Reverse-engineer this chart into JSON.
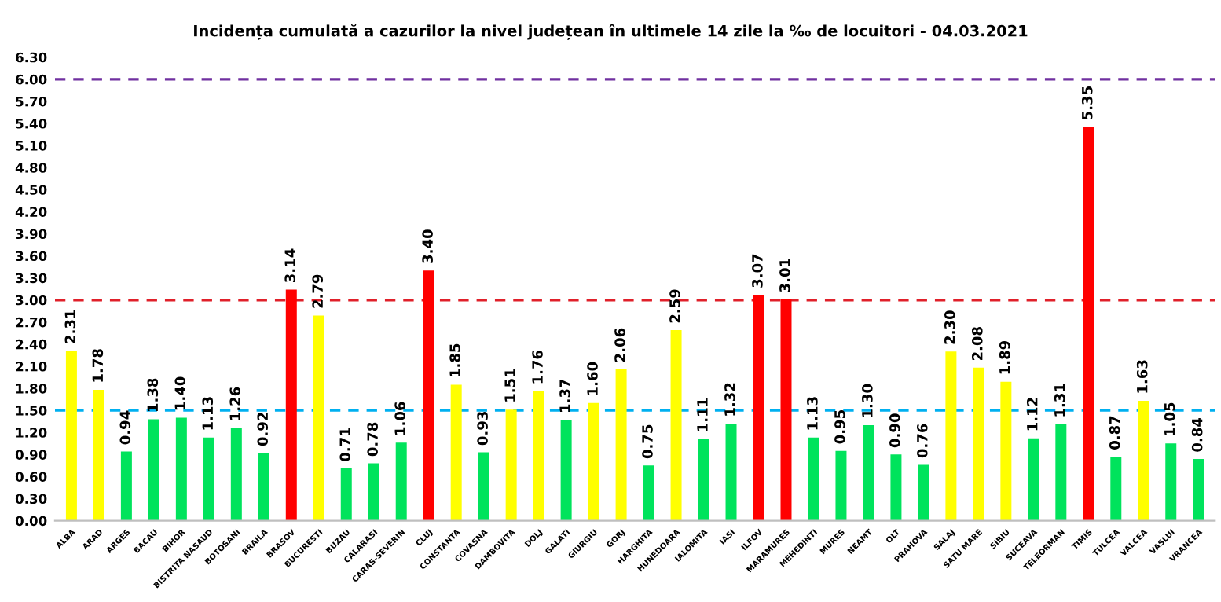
{
  "chart_data": {
    "type": "bar",
    "title": "Incidența cumulată a cazurilor la nivel județean în ultimele 14 zile la ‰ de locuitori - 04.03.2021",
    "categories": [
      "ALBA",
      "ARAD",
      "ARGES",
      "BACAU",
      "BIHOR",
      "BISTRITA NASAUD",
      "BOTOSANI",
      "BRAILA",
      "BRASOV",
      "BUCURESTI",
      "BUZAU",
      "CALARASI",
      "CARAS-SEVERIN",
      "CLUJ",
      "CONSTANTA",
      "COVASNA",
      "DAMBOVITA",
      "DOLJ",
      "GALATI",
      "GIURGIU",
      "GORJ",
      "HARGHITA",
      "HUNEDOARA",
      "IALOMITA",
      "IASI",
      "ILFOV",
      "MARAMURES",
      "MEHEDINTI",
      "MURES",
      "NEAMT",
      "OLT",
      "PRAHOVA",
      "SALAJ",
      "SATU MARE",
      "SIBIU",
      "SUCEAVA",
      "TELEORMAN",
      "TIMIS",
      "TULCEA",
      "VALCEA",
      "VASLUI",
      "VRANCEA"
    ],
    "values": [
      2.31,
      1.78,
      0.94,
      1.38,
      1.4,
      1.13,
      1.26,
      0.92,
      3.14,
      2.79,
      0.71,
      0.78,
      1.06,
      3.4,
      1.85,
      0.93,
      1.51,
      1.76,
      1.37,
      1.6,
      2.06,
      0.75,
      2.59,
      1.11,
      1.32,
      3.07,
      3.01,
      1.13,
      0.95,
      1.3,
      0.9,
      0.76,
      2.3,
      2.08,
      1.89,
      1.12,
      1.31,
      5.35,
      0.87,
      1.63,
      1.05,
      0.84
    ],
    "value_labels": [
      "2.31",
      "1.78",
      "0.94",
      "1.38",
      "1.40",
      "1.13",
      "1.26",
      "0.92",
      "3.14",
      "2.79",
      "0.71",
      "0.78",
      "1.06",
      "3.40",
      "1.85",
      "0.93",
      "1.51",
      "1.76",
      "1.37",
      "1.60",
      "2.06",
      "0.75",
      "2.59",
      "1.11",
      "1.32",
      "3.07",
      "3.01",
      "1.13",
      "0.95",
      "1.30",
      "0.90",
      "0.76",
      "2.30",
      "2.08",
      "1.89",
      "1.12",
      "1.31",
      "5.35",
      "0.87",
      "1.63",
      "1.05",
      "0.84"
    ],
    "colors": [
      "#ffff00",
      "#ffff00",
      "#00e35c",
      "#00e35c",
      "#00e35c",
      "#00e35c",
      "#00e35c",
      "#00e35c",
      "#ff0000",
      "#ffff00",
      "#00e35c",
      "#00e35c",
      "#00e35c",
      "#ff0000",
      "#ffff00",
      "#00e35c",
      "#ffff00",
      "#ffff00",
      "#00e35c",
      "#ffff00",
      "#ffff00",
      "#00e35c",
      "#ffff00",
      "#00e35c",
      "#00e35c",
      "#ff0000",
      "#ff0000",
      "#00e35c",
      "#00e35c",
      "#00e35c",
      "#00e35c",
      "#00e35c",
      "#ffff00",
      "#ffff00",
      "#ffff00",
      "#00e35c",
      "#00e35c",
      "#ff0000",
      "#00e35c",
      "#ffff00",
      "#00e35c",
      "#00e35c"
    ],
    "ylim": [
      0,
      6.3
    ],
    "yticks": [
      {
        "value": 0,
        "label": "0.00"
      },
      {
        "value": 0.3,
        "label": "0.30"
      },
      {
        "value": 0.6,
        "label": "0.60"
      },
      {
        "value": 0.9,
        "label": "0.90"
      },
      {
        "value": 1.2,
        "label": "1.20"
      },
      {
        "value": 1.5,
        "label": "1.50"
      },
      {
        "value": 1.8,
        "label": "1.80"
      },
      {
        "value": 2.1,
        "label": "2.10"
      },
      {
        "value": 2.4,
        "label": "2.40"
      },
      {
        "value": 2.7,
        "label": "2.70"
      },
      {
        "value": 3.0,
        "label": "3.00"
      },
      {
        "value": 3.3,
        "label": "3.30"
      },
      {
        "value": 3.6,
        "label": "3.60"
      },
      {
        "value": 3.9,
        "label": "3.90"
      },
      {
        "value": 4.2,
        "label": "4.20"
      },
      {
        "value": 4.5,
        "label": "4.50"
      },
      {
        "value": 4.8,
        "label": "4.80"
      },
      {
        "value": 5.1,
        "label": "5.10"
      },
      {
        "value": 5.4,
        "label": "5.40"
      },
      {
        "value": 5.7,
        "label": "5.70"
      },
      {
        "value": 6.0,
        "label": "6.00"
      },
      {
        "value": 6.3,
        "label": "6.30"
      }
    ],
    "ref_lines": [
      {
        "axis": "y",
        "value": 6.0,
        "color": "#7030a0",
        "line_style": "dashed"
      },
      {
        "axis": "y",
        "value": 3.0,
        "color": "#e0202a",
        "line_style": "dashed"
      },
      {
        "axis": "y",
        "value": 1.5,
        "color": "#00b0f0",
        "line_style": "dashed"
      }
    ],
    "grid": false,
    "legend": false
  }
}
